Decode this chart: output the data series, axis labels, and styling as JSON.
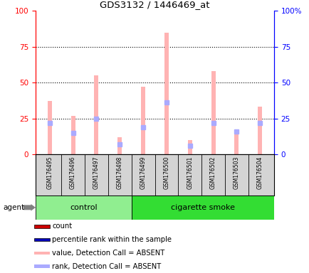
{
  "title": "GDS3132 / 1446469_at",
  "samples": [
    "GSM176495",
    "GSM176496",
    "GSM176497",
    "GSM176498",
    "GSM176499",
    "GSM176500",
    "GSM176501",
    "GSM176502",
    "GSM176503",
    "GSM176504"
  ],
  "groups": [
    "control",
    "control",
    "control",
    "control",
    "cigarette smoke",
    "cigarette smoke",
    "cigarette smoke",
    "cigarette smoke",
    "cigarette smoke",
    "cigarette smoke"
  ],
  "value_absent": [
    37,
    27,
    55,
    12,
    47,
    85,
    10,
    58,
    17,
    33
  ],
  "rank_absent": [
    22,
    15,
    25,
    7,
    19,
    36,
    6,
    22,
    16,
    22
  ],
  "ylim_left": [
    0,
    100
  ],
  "ylim_right": [
    0,
    100
  ],
  "color_value_absent": "#ffb3b3",
  "color_rank_absent": "#aaaaff",
  "color_count": "#cc0000",
  "color_percentile": "#0000bb",
  "bar_width": 0.18,
  "legend_items": [
    {
      "label": "count",
      "color": "#cc0000"
    },
    {
      "label": "percentile rank within the sample",
      "color": "#0000bb"
    },
    {
      "label": "value, Detection Call = ABSENT",
      "color": "#ffb3b3"
    },
    {
      "label": "rank, Detection Call = ABSENT",
      "color": "#aaaaff"
    }
  ],
  "control_color": "#90ee90",
  "smoke_color": "#33dd33",
  "n_control": 4,
  "bg_gray": "#d4d4d4"
}
